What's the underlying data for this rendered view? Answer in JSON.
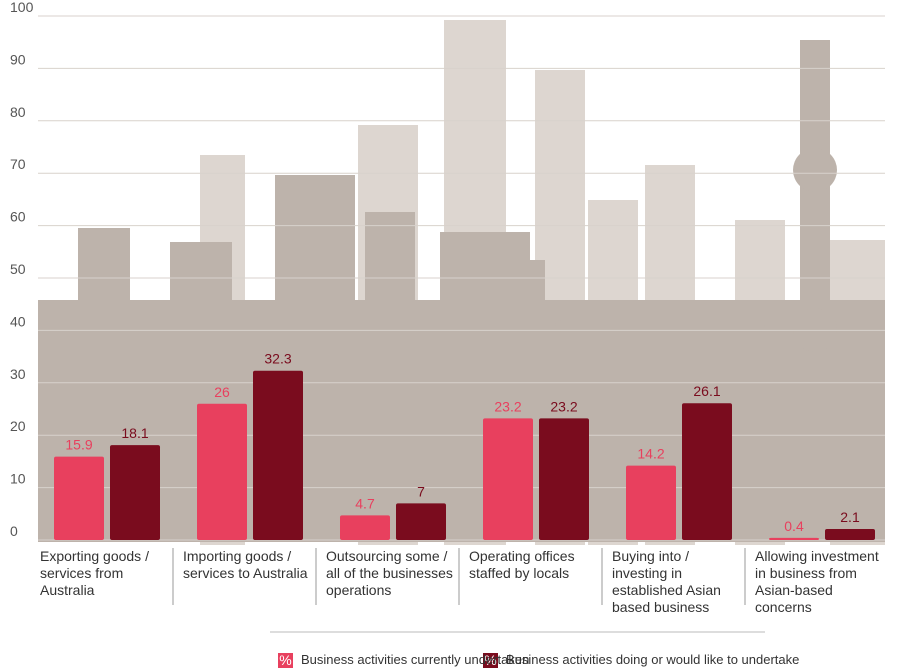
{
  "chart_data": {
    "type": "bar",
    "categories": [
      "Exporting goods / services from Australia",
      "Importing goods / services to Australia",
      "Outsourcing some / all of the businesses operations",
      "Operating offices staffed by locals",
      "Buying into / investing in established Asian based business",
      "Allowing investment in business from Asian-based concerns"
    ],
    "series": [
      {
        "name": "Business activities currently undertaken",
        "color": "#e8405e",
        "values": [
          15.9,
          26,
          4.7,
          23.2,
          14.2,
          0.4
        ]
      },
      {
        "name": "Business activities doing or would like to undertake",
        "color": "#7a0c1e",
        "values": [
          18.1,
          32.3,
          7,
          23.2,
          26.1,
          2.1
        ]
      }
    ],
    "legend_symbol": "%",
    "ylim": [
      0,
      100
    ],
    "yticks": [
      0,
      10,
      20,
      30,
      40,
      50,
      60,
      70,
      80,
      90,
      100
    ],
    "grid": true
  }
}
